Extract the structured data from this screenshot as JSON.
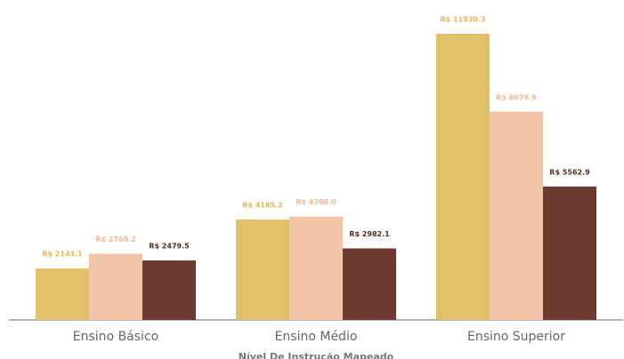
{
  "chart_data": {
    "type": "bar",
    "x_label": "Nível De Instrução Mapeado",
    "categories": [
      "Ensino Básico",
      "Ensino Médio",
      "Ensino Superior"
    ],
    "series": [
      {
        "color": "#e0c068",
        "label_color": "#e8b45a",
        "values": [
          2143.1,
          4185.2,
          11930.3
        ],
        "value_labels": [
          "R$ 2143.1",
          "R$ 4185.2",
          "R$ 11930.3"
        ]
      },
      {
        "color": "#f2c4a8",
        "label_color": "#f0b894",
        "values": [
          2760.2,
          4308.0,
          8679.9
        ],
        "value_labels": [
          "R$ 2760.2",
          "R$ 4308.0",
          "R$ 8679.9"
        ]
      },
      {
        "color": "#6b3b30",
        "label_color": "#5a2a20",
        "values": [
          2479.5,
          2982.1,
          5562.9
        ],
        "value_labels": [
          "R$ 2479.5",
          "R$ 2982.1",
          "R$ 5562.9"
        ]
      }
    ],
    "ylim": [
      0,
      13340
    ]
  }
}
